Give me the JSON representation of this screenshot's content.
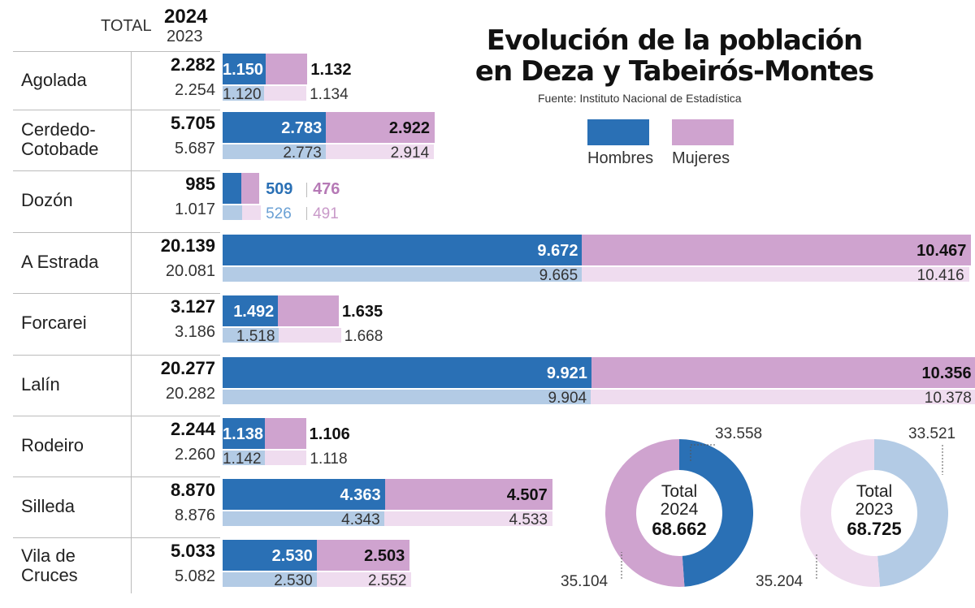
{
  "header": {
    "total_label": "TOTAL",
    "year_2024": "2024",
    "year_2023": "2023"
  },
  "title": {
    "line1": "Evolución de la población",
    "line2": "en Deza y Tabeirós-Montes",
    "source": "Fuente: Instituto Nacional de Estadística"
  },
  "legend": {
    "hombres": "Hombres",
    "mujeres": "Mujeres"
  },
  "colors": {
    "hombres2024": "#2a70b5",
    "mujeres2024": "#cfa3cf",
    "hombres2023": "#b3cbe5",
    "mujeres2023": "#efdcef"
  },
  "chart_data": {
    "type": "bar",
    "title": "Evolución de la población en Deza y Tabeirós-Montes",
    "categories": [
      "Agolada",
      "Cerdedo-Cotobade",
      "Dozón",
      "A Estrada",
      "Forcarei",
      "Lalín",
      "Rodeiro",
      "Silleda",
      "Vila de Cruces"
    ],
    "rows": [
      {
        "name": [
          "Agolada"
        ],
        "total2024": "2.282",
        "total2023": "2.254",
        "h2024": 1150,
        "m2024": 1132,
        "h2023": 1120,
        "m2023": 1134,
        "lh2024": "1.150",
        "lm2024": "1.132",
        "lh2023": "1.120",
        "lm2023": "1.134"
      },
      {
        "name": [
          "Cerdedo-",
          "Cotobade"
        ],
        "total2024": "5.705",
        "total2023": "5.687",
        "h2024": 2783,
        "m2024": 2922,
        "h2023": 2773,
        "m2023": 2914,
        "lh2024": "2.783",
        "lm2024": "2.922",
        "lh2023": "2.773",
        "lm2023": "2.914"
      },
      {
        "name": [
          "Dozón"
        ],
        "total2024": "985",
        "total2023": "1.017",
        "h2024": 509,
        "m2024": 476,
        "h2023": 526,
        "m2023": 491,
        "lh2024": "509",
        "lm2024": "476",
        "lh2023": "526",
        "lm2023": "491"
      },
      {
        "name": [
          "A Estrada"
        ],
        "total2024": "20.139",
        "total2023": "20.081",
        "h2024": 9672,
        "m2024": 10467,
        "h2023": 9665,
        "m2023": 10416,
        "lh2024": "9.672",
        "lm2024": "10.467",
        "lh2023": "9.665",
        "lm2023": "10.416"
      },
      {
        "name": [
          "Forcarei"
        ],
        "total2024": "3.127",
        "total2023": "3.186",
        "h2024": 1492,
        "m2024": 1635,
        "h2023": 1518,
        "m2023": 1668,
        "lh2024": "1.492",
        "lm2024": "1.635",
        "lh2023": "1.518",
        "lm2023": "1.668"
      },
      {
        "name": [
          "Lalín"
        ],
        "total2024": "20.277",
        "total2023": "20.282",
        "h2024": 9921,
        "m2024": 10356,
        "h2023": 9904,
        "m2023": 10378,
        "lh2024": "9.921",
        "lm2024": "10.356",
        "lh2023": "9.904",
        "lm2023": "10.378"
      },
      {
        "name": [
          "Rodeiro"
        ],
        "total2024": "2.244",
        "total2023": "2.260",
        "h2024": 1138,
        "m2024": 1106,
        "h2023": 1142,
        "m2023": 1118,
        "lh2024": "1.138",
        "lm2024": "1.106",
        "lh2023": "1.142",
        "lm2023": "1.118"
      },
      {
        "name": [
          "Silleda"
        ],
        "total2024": "8.870",
        "total2023": "8.876",
        "h2024": 4363,
        "m2024": 4507,
        "h2023": 4343,
        "m2023": 4533,
        "lh2024": "4.363",
        "lm2024": "4.507",
        "lh2023": "4.343",
        "lm2023": "4.533"
      },
      {
        "name": [
          "Vila de",
          "Cruces"
        ],
        "total2024": "5.033",
        "total2023": "5.082",
        "h2024": 2530,
        "m2024": 2503,
        "h2023": 2530,
        "m2023": 2552,
        "lh2024": "2.530",
        "lm2024": "2.503",
        "lh2023": "2.530",
        "lm2023": "2.552"
      }
    ],
    "donuts": [
      {
        "label": "Total",
        "year": "2024",
        "total": "68.662",
        "hombres": 33558,
        "mujeres": 35104,
        "lh": "33.558",
        "lm": "35.104"
      },
      {
        "label": "Total",
        "year": "2023",
        "total": "68.725",
        "hombres": 33521,
        "mujeres": 35204,
        "lh": "33.521",
        "lm": "35.204"
      }
    ]
  }
}
